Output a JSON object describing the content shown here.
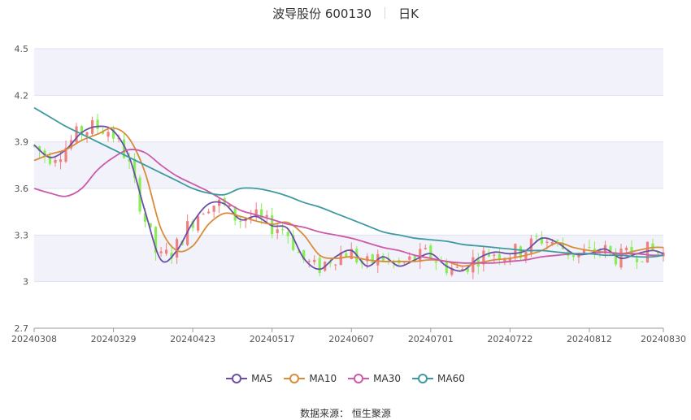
{
  "title": {
    "name": "波导股份 600130",
    "period": "日K"
  },
  "source": {
    "label": "数据来源：",
    "value": "恒生聚源"
  },
  "colors": {
    "up": "#f08080",
    "down": "#88ee55",
    "band": "#f2f3fa",
    "grid": "#e0e3ef"
  },
  "chart_data": {
    "type": "candlestick",
    "ylim": [
      2.7,
      4.5
    ],
    "yticks": [
      "2.7",
      "3",
      "3.3",
      "3.6",
      "3.9",
      "4.2",
      "4.5"
    ],
    "ytick_values": [
      2.7,
      3.0,
      3.3,
      3.6,
      3.9,
      4.2,
      4.5
    ],
    "xticks": [
      "20240308",
      "20240329",
      "20240423",
      "20240517",
      "20240607",
      "20240701",
      "20240722",
      "20240812",
      "20240830"
    ],
    "xtick_index": [
      0,
      15,
      30,
      45,
      60,
      75,
      90,
      105,
      119
    ],
    "n_days": 120,
    "legend": [
      {
        "name": "MA5",
        "color": "#6a4fa5"
      },
      {
        "name": "MA10",
        "color": "#d98c3a"
      },
      {
        "name": "MA30",
        "color": "#cc5aa8"
      },
      {
        "name": "MA60",
        "color": "#3e9aa0"
      }
    ],
    "ma_series": [
      {
        "name": "MA5",
        "color": "#6a4fa5",
        "x": [
          0,
          3,
          6,
          9,
          12,
          15,
          18,
          21,
          24,
          27,
          30,
          33,
          36,
          39,
          42,
          45,
          48,
          51,
          54,
          57,
          60,
          63,
          66,
          69,
          72,
          75,
          78,
          81,
          84,
          87,
          90,
          93,
          96,
          99,
          102,
          105,
          108,
          111,
          114,
          117,
          119
        ],
        "values": [
          3.88,
          3.8,
          3.85,
          3.96,
          4.0,
          3.97,
          3.8,
          3.45,
          3.14,
          3.2,
          3.38,
          3.5,
          3.5,
          3.4,
          3.42,
          3.36,
          3.34,
          3.15,
          3.08,
          3.16,
          3.2,
          3.1,
          3.16,
          3.1,
          3.14,
          3.18,
          3.1,
          3.07,
          3.15,
          3.19,
          3.18,
          3.2,
          3.28,
          3.25,
          3.18,
          3.18,
          3.21,
          3.15,
          3.18,
          3.2,
          3.18
        ]
      },
      {
        "name": "MA10",
        "color": "#d98c3a",
        "x": [
          0,
          3,
          6,
          9,
          12,
          15,
          18,
          21,
          24,
          27,
          30,
          33,
          36,
          39,
          42,
          45,
          48,
          51,
          54,
          57,
          60,
          63,
          66,
          69,
          72,
          75,
          78,
          81,
          84,
          87,
          90,
          93,
          96,
          99,
          102,
          105,
          108,
          111,
          114,
          117,
          119
        ],
        "values": [
          3.78,
          3.82,
          3.85,
          3.91,
          3.95,
          3.99,
          3.92,
          3.7,
          3.34,
          3.2,
          3.23,
          3.37,
          3.44,
          3.42,
          3.39,
          3.37,
          3.38,
          3.3,
          3.17,
          3.15,
          3.16,
          3.14,
          3.13,
          3.13,
          3.13,
          3.14,
          3.13,
          3.1,
          3.12,
          3.14,
          3.15,
          3.17,
          3.2,
          3.25,
          3.22,
          3.2,
          3.19,
          3.18,
          3.2,
          3.22,
          3.22
        ]
      },
      {
        "name": "MA30",
        "color": "#cc5aa8",
        "x": [
          0,
          3,
          6,
          9,
          12,
          15,
          18,
          21,
          24,
          27,
          30,
          33,
          36,
          39,
          42,
          45,
          48,
          51,
          54,
          57,
          60,
          63,
          66,
          69,
          72,
          75,
          78,
          81,
          84,
          87,
          90,
          93,
          96,
          99,
          102,
          105,
          108,
          111,
          114,
          117,
          119
        ],
        "values": [
          3.6,
          3.57,
          3.55,
          3.6,
          3.72,
          3.8,
          3.85,
          3.83,
          3.75,
          3.68,
          3.63,
          3.58,
          3.52,
          3.46,
          3.43,
          3.4,
          3.37,
          3.35,
          3.32,
          3.3,
          3.28,
          3.25,
          3.22,
          3.2,
          3.17,
          3.15,
          3.13,
          3.12,
          3.12,
          3.12,
          3.13,
          3.14,
          3.16,
          3.17,
          3.18,
          3.18,
          3.19,
          3.18,
          3.18,
          3.17,
          3.17
        ]
      },
      {
        "name": "MA60",
        "color": "#3e9aa0",
        "x": [
          0,
          3,
          6,
          9,
          12,
          15,
          18,
          21,
          24,
          27,
          30,
          33,
          36,
          39,
          42,
          45,
          48,
          51,
          54,
          57,
          60,
          63,
          66,
          69,
          72,
          75,
          78,
          81,
          84,
          87,
          90,
          93,
          96,
          99,
          102,
          105,
          108,
          111,
          114,
          117,
          119
        ],
        "values": [
          4.12,
          4.06,
          4.0,
          3.95,
          3.9,
          3.85,
          3.8,
          3.75,
          3.7,
          3.65,
          3.6,
          3.57,
          3.56,
          3.6,
          3.6,
          3.58,
          3.55,
          3.51,
          3.48,
          3.44,
          3.4,
          3.36,
          3.32,
          3.3,
          3.28,
          3.27,
          3.26,
          3.24,
          3.23,
          3.22,
          3.21,
          3.2,
          3.2,
          3.19,
          3.18,
          3.18,
          3.17,
          3.17,
          3.16,
          3.16,
          3.17
        ]
      }
    ]
  }
}
